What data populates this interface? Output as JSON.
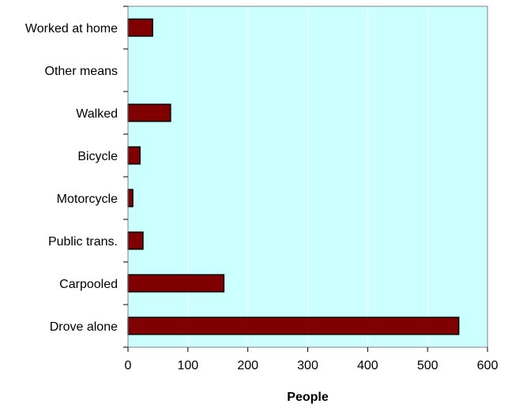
{
  "chart_data": {
    "type": "bar",
    "orientation": "horizontal",
    "title": "",
    "xlabel": "People",
    "ylabel": "",
    "categories": [
      "Drove alone",
      "Carpooled",
      "Public trans.",
      "Motorcycle",
      "Bicycle",
      "Walked",
      "Other means",
      "Worked at home"
    ],
    "values": [
      552,
      160,
      25,
      8,
      20,
      71,
      0,
      41
    ],
    "xlim": [
      0,
      600
    ],
    "xticks": [
      "0",
      "100",
      "200",
      "300",
      "400",
      "500",
      "600"
    ],
    "grid": "vertical",
    "legend": "none",
    "colors": {
      "plot_background": "#ccffff",
      "bar_fill": "#800000",
      "bar_stroke": "#000000",
      "gridline": "#ffffff",
      "axis": "#000000"
    }
  }
}
